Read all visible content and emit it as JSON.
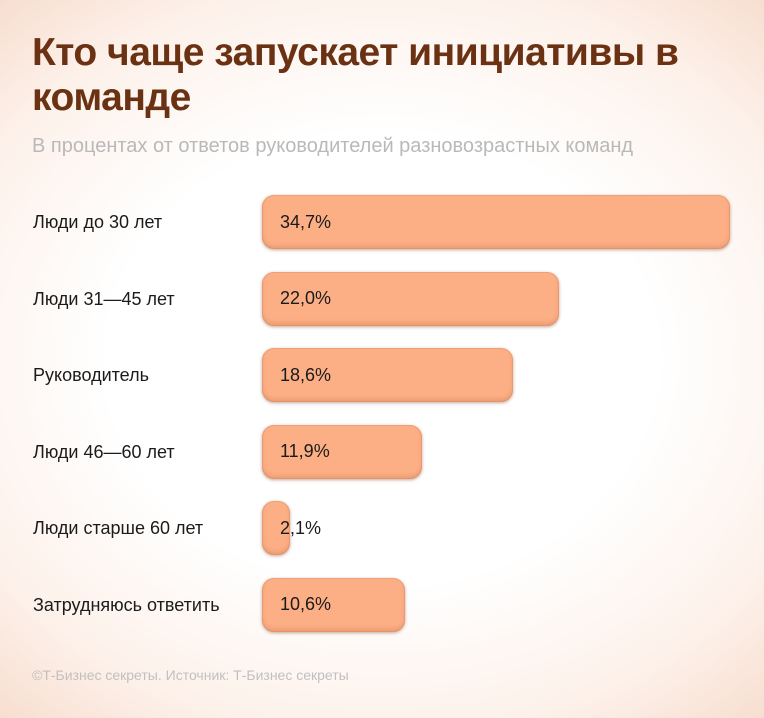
{
  "header": {
    "title": "Кто чаще запускает инициативы в команде",
    "subtitle": "В процентах от ответов руководителей разновозрастных команд"
  },
  "footer": {
    "source": "©Т-Бизнес секреты. Источник: Т-Бизнес секреты"
  },
  "chart_data": {
    "type": "bar",
    "orientation": "horizontal",
    "title": "Кто чаще запускает инициативы в команде",
    "subtitle": "В процентах от ответов руководителей разновозрастных команд",
    "categories": [
      "Люди до 30 лет",
      "Люди 31—45 лет",
      "Руководитель",
      "Люди 46—60 лет",
      "Люди старше 60 лет",
      "Затрудняюсь ответить"
    ],
    "values": [
      34.7,
      22.0,
      18.6,
      11.9,
      2.1,
      10.6
    ],
    "value_labels": [
      "34,7%",
      "22,0%",
      "18,6%",
      "11,9%",
      "2,1%",
      "10,6%"
    ],
    "unit": "%",
    "xlim": [
      0,
      34.7
    ],
    "grid": false,
    "legend": "none",
    "colors": {
      "bar": "#fcae84",
      "title": "#6b3113"
    }
  }
}
